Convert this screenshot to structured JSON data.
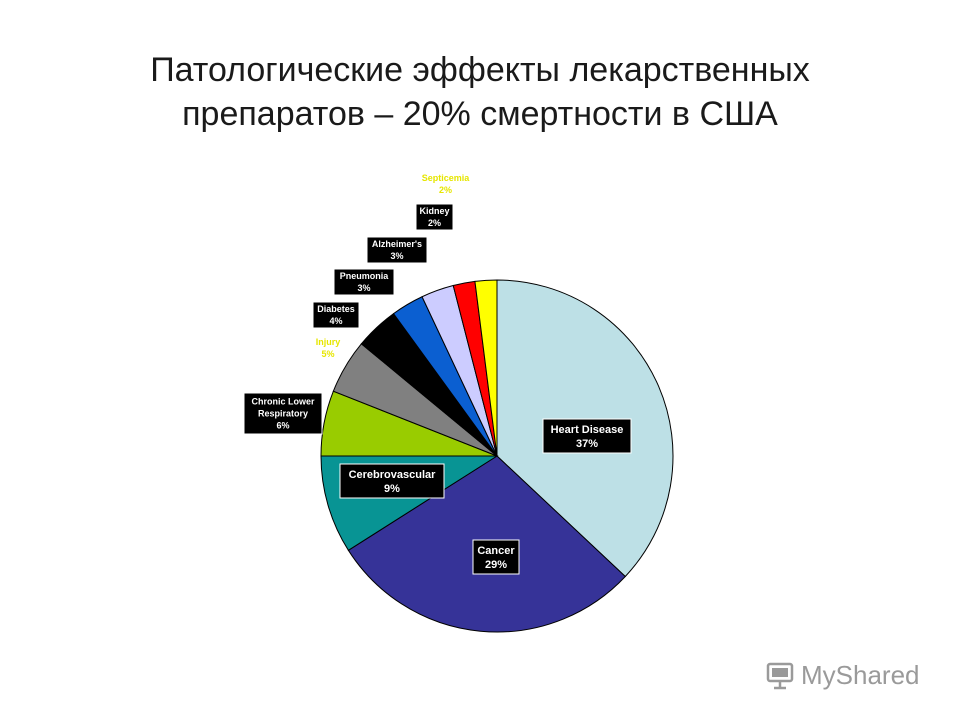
{
  "title": {
    "line1": "Патологические эффекты лекарственных",
    "line2": "препаратов – 20% смертности в США"
  },
  "watermark": {
    "text": "MyShared",
    "icon": "presentation-board-icon"
  },
  "chart_data": {
    "type": "pie",
    "title": "",
    "start_angle_deg": 0,
    "direction": "clockwise",
    "slices": [
      {
        "label": "Heart Disease",
        "value": 37,
        "pct": "37%",
        "color": "#BDE0E6",
        "label_style": "box",
        "label_pos": "inside"
      },
      {
        "label": "Cancer",
        "value": 29,
        "pct": "29%",
        "color": "#363398",
        "label_style": "box",
        "label_pos": "inside"
      },
      {
        "label": "Cerebrovascular",
        "value": 9,
        "pct": "9%",
        "color": "#089494",
        "label_style": "box",
        "label_pos": "inside"
      },
      {
        "label": "Chronic Lower Respiratory",
        "value": 6,
        "pct": "6%",
        "color": "#99CC00",
        "label_style": "box",
        "label_pos": "outside"
      },
      {
        "label": "Injury",
        "value": 5,
        "pct": "5%",
        "color": "#808080",
        "label_style": "plain-yellow",
        "label_pos": "outside"
      },
      {
        "label": "Diabetes",
        "value": 4,
        "pct": "4%",
        "color": "#000000",
        "label_style": "box",
        "label_pos": "outside"
      },
      {
        "label": "Pneumonia",
        "value": 3,
        "pct": "3%",
        "color": "#0B5FD1",
        "label_style": "box",
        "label_pos": "outside"
      },
      {
        "label": "Alzheimer's",
        "value": 3,
        "pct": "3%",
        "color": "#CCCCFF",
        "label_style": "box",
        "label_pos": "outside"
      },
      {
        "label": "Kidney",
        "value": 2,
        "pct": "2%",
        "color": "#FF0000",
        "label_style": "box",
        "label_pos": "outside"
      },
      {
        "label": "Septicemia",
        "value": 2,
        "pct": "2%",
        "color": "#FFFF00",
        "label_style": "plain-yellow",
        "label_pos": "outside"
      }
    ]
  }
}
